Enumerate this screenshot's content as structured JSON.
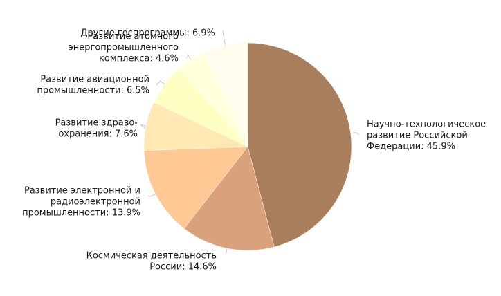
{
  "chart_data": {
    "type": "pie",
    "unit": "%",
    "start_angle_deg": 0,
    "direction": "clockwise",
    "slices": [
      {
        "label": [
          "Научно-технологическое",
          "развитие Российской",
          "Федерации: 45.9%"
        ],
        "value": 45.9,
        "color": "#a97e5d"
      },
      {
        "label": [
          "Космическая деятельность",
          "России: 14.6%"
        ],
        "value": 14.6,
        "color": "#d9a27c"
      },
      {
        "label": [
          "Развитие электронной и",
          "радиоэлектронной",
          "промышленности: 13.9%"
        ],
        "value": 13.9,
        "color": "#ffc895"
      },
      {
        "label": [
          "Развитие здраво-",
          "охранения: 7.6%"
        ],
        "value": 7.6,
        "color": "#ffe8b1"
      },
      {
        "label": [
          "Развитие авиационной",
          "промышленности: 6.5%"
        ],
        "value": 6.5,
        "color": "#ffffc3"
      },
      {
        "label": [
          "Развитие атомного",
          "энергопромышленного",
          "комплекса: 4.6%"
        ],
        "value": 4.6,
        "color": "#ffffdc"
      },
      {
        "label": [
          "Другие госпрограммы: 6.9%"
        ],
        "value": 6.9,
        "color": "#fffbed"
      }
    ]
  }
}
